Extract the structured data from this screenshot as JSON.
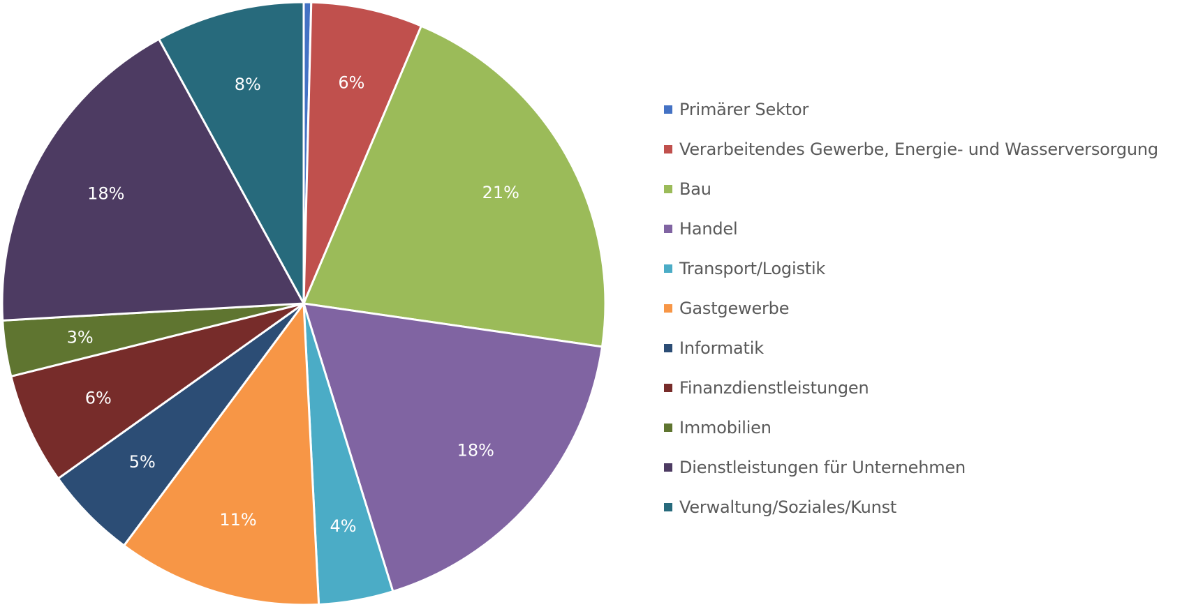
{
  "chart_data": {
    "type": "pie",
    "start_angle_deg": 0,
    "direction": "clockwise",
    "legend_position": "right",
    "slices": [
      {
        "label": "Primärer Sektor",
        "value": 0.4,
        "display": "",
        "color": "#4472C4"
      },
      {
        "label": "Verarbeitendes Gewerbe, Energie- und Wasserversorgung",
        "value": 6,
        "display": "6%",
        "color": "#C0504D"
      },
      {
        "label": "Bau",
        "value": 21,
        "display": "21%",
        "color": "#9BBB59"
      },
      {
        "label": "Handel",
        "value": 18,
        "display": "18%",
        "color": "#8064A2"
      },
      {
        "label": "Transport/Logistik",
        "value": 4,
        "display": "4%",
        "color": "#4BACC6"
      },
      {
        "label": "Gastgewerbe",
        "value": 11,
        "display": "11%",
        "color": "#F79646"
      },
      {
        "label": "Informatik",
        "value": 5,
        "display": "5%",
        "color": "#2C4D75"
      },
      {
        "label": "Finanzdienstleistungen",
        "value": 6,
        "display": "6%",
        "color": "#772C2A"
      },
      {
        "label": "Immobilien",
        "value": 3,
        "display": "3%",
        "color": "#5F7530"
      },
      {
        "label": "Dienstleistungen für Unternehmen",
        "value": 18,
        "display": "18%",
        "color": "#4D3B62"
      },
      {
        "label": "Verwaltung/Soziales/Kunst",
        "value": 8,
        "display": "8%",
        "color": "#276A7C"
      }
    ]
  }
}
